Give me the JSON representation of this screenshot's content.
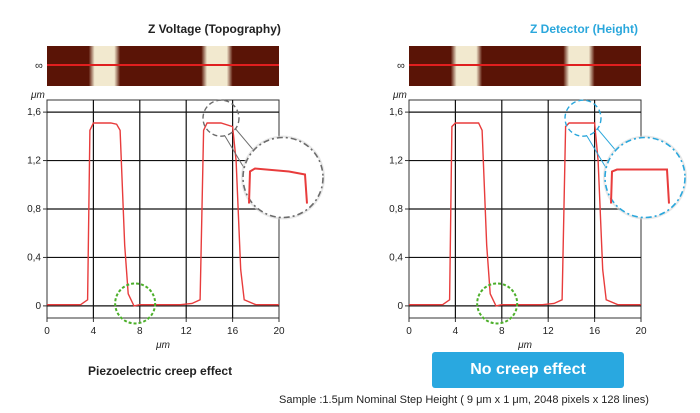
{
  "left_panel": {
    "title": "Z Voltage (Topography)",
    "caption": "Piezoelectric creep effect"
  },
  "right_panel": {
    "title": "Z Detector (Height)",
    "badge": "No creep effect"
  },
  "footnote": "Sample :1.5μm  Nominal Step Height ( 9 μm x 1 μm, 2048 pixels x 128 lines)",
  "image_strip_marker": "∞",
  "colors": {
    "trace": "#e83c3c",
    "scan_line": "#e01f1f",
    "strip_dark": "#5a1406",
    "strip_light": "#f2e9cf",
    "title_accent": "#2aa7dc",
    "badge_bg": "#29a8e0",
    "creep_circle": "#6c6c6c",
    "nocreep_circle": "#2aa7dc",
    "base_circle": "#4caf2a"
  },
  "chart_data": [
    {
      "type": "line",
      "title": "Z Voltage (Topography)",
      "xlabel": "μm",
      "ylabel": "μm",
      "xlim": [
        0,
        20
      ],
      "ylim": [
        -0.1,
        1.7
      ],
      "xticks": [
        0,
        4,
        8,
        12,
        16,
        20
      ],
      "yticks": [
        0,
        0.4,
        0.8,
        1.2,
        1.6
      ],
      "xtick_labels": [
        "0",
        "4",
        "8",
        "12",
        "16",
        "20"
      ],
      "ytick_labels": [
        "0",
        "0,4",
        "0,8",
        "1,2",
        "1,6"
      ],
      "grid": true,
      "series": [
        {
          "x": [
            0,
            2.9,
            3.5,
            3.7,
            4.0,
            5.5,
            6.0,
            6.3,
            6.7,
            7.0,
            7.5,
            8.0,
            11.5,
            12.5,
            13.2,
            13.5,
            13.8,
            15.0,
            16.0,
            16.3,
            16.7,
            17.0,
            18.0,
            20
          ],
          "y": [
            0.01,
            0.01,
            0.05,
            1.45,
            1.51,
            1.51,
            1.5,
            1.45,
            0.5,
            0.1,
            0.0,
            0.01,
            0.01,
            0.02,
            0.05,
            1.45,
            1.51,
            1.51,
            1.48,
            1.2,
            0.3,
            0.05,
            0.01,
            0.01
          ]
        }
      ],
      "annotation": "creep"
    },
    {
      "type": "line",
      "title": "Z Detector (Height)",
      "xlabel": "μm",
      "ylabel": "μm",
      "xlim": [
        0,
        20
      ],
      "ylim": [
        -0.1,
        1.7
      ],
      "xticks": [
        0,
        4,
        8,
        12,
        16,
        20
      ],
      "yticks": [
        0,
        0.4,
        0.8,
        1.2,
        1.6
      ],
      "xtick_labels": [
        "0",
        "4",
        "8",
        "12",
        "16",
        "20"
      ],
      "ytick_labels": [
        "0",
        "0,4",
        "0,8",
        "1,2",
        "1,6"
      ],
      "grid": true,
      "series": [
        {
          "x": [
            0,
            2.9,
            3.5,
            3.7,
            4.0,
            5.5,
            6.0,
            6.3,
            6.7,
            7.0,
            7.5,
            8.0,
            11.5,
            12.5,
            13.2,
            13.5,
            13.8,
            15.0,
            16.0,
            16.3,
            16.7,
            17.0,
            18.0,
            20
          ],
          "y": [
            0.01,
            0.01,
            0.05,
            1.48,
            1.51,
            1.51,
            1.51,
            1.45,
            0.5,
            0.1,
            0.0,
            0.01,
            0.01,
            0.02,
            0.05,
            1.48,
            1.51,
            1.51,
            1.51,
            1.2,
            0.3,
            0.05,
            0.01,
            0.01
          ]
        }
      ],
      "annotation": "no-creep"
    }
  ]
}
